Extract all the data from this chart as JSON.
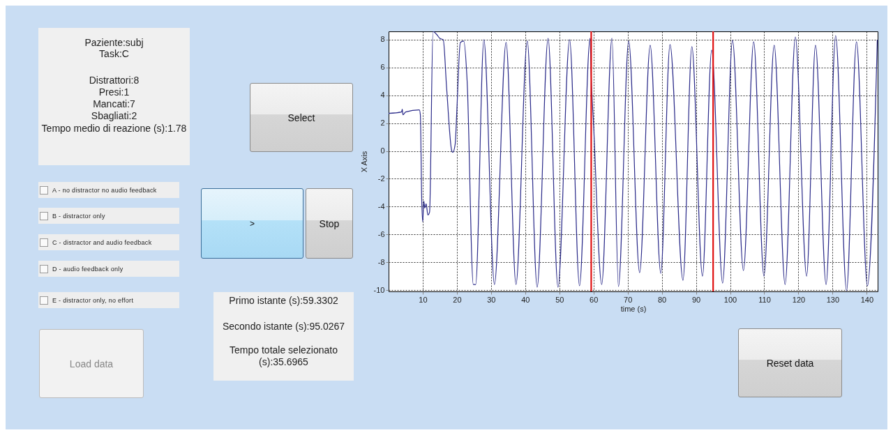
{
  "chart_data": [
    {
      "type": "line",
      "xlabel": "time (s)",
      "ylabel": "X Axis",
      "xlim": [
        0,
        143.2
      ],
      "ylim": [
        -10.1,
        8.6
      ],
      "xticks": [
        10,
        20,
        30,
        40,
        50,
        60,
        70,
        80,
        90,
        100,
        110,
        120,
        130,
        140
      ],
      "yticks": [
        -10,
        -8,
        -6,
        -4,
        -2,
        0,
        2,
        4,
        6,
        8
      ],
      "grid": true,
      "line_style": "solid",
      "marker": "none",
      "ref_lines": [
        {
          "axis": "x",
          "value": 59.3302,
          "color": "#e01010"
        },
        {
          "axis": "x",
          "value": 95.0267,
          "color": "#e01010"
        }
      ],
      "series": [
        {
          "color": "#2b2b8a",
          "x": [
            0,
            3.8,
            4,
            4.2,
            5,
            9,
            9.3,
            9.7,
            10,
            10.3,
            10.6,
            11,
            11.5,
            12,
            13,
            14,
            15,
            16,
            17,
            18.5,
            18.8,
            19.5,
            20,
            21,
            22,
            23,
            24.8,
            25.5,
            27.9,
            31,
            34.4,
            37.3,
            40.6,
            43.5,
            46.7,
            49.6,
            53,
            55.9,
            59,
            59.3,
            60,
            62.4,
            65.4,
            67.3,
            70.3,
            73.5,
            76.6,
            79.7,
            82.4,
            86.2,
            88.8,
            91.9,
            94.6,
            97.8,
            100.7,
            103.9,
            106.9,
            109.9,
            112.9,
            116.1,
            119.1,
            122.4,
            125,
            128.1,
            130.9,
            134.1,
            137,
            140.2,
            143.1
          ],
          "values": [
            2.7,
            2.8,
            3.0,
            2.6,
            2.8,
            2.95,
            2.6,
            -3.5,
            -5.1,
            -3.6,
            -4.1,
            -3.8,
            -4.6,
            -4.4,
            8.6,
            8.4,
            8.1,
            8.0,
            4.5,
            0,
            -0.1,
            0.5,
            3,
            7.8,
            7.9,
            5,
            -9.6,
            -9.6,
            8.0,
            -9.6,
            7.8,
            -9.6,
            7.9,
            -9.8,
            8.1,
            -9.8,
            8.0,
            -9.7,
            8.1,
            5.5,
            2,
            -9.6,
            8.1,
            -9.75,
            7.9,
            -8.75,
            7.6,
            -8.8,
            7.65,
            -9.3,
            7.5,
            -9.0,
            7.25,
            -9.5,
            7.95,
            -8.6,
            7.85,
            -9.0,
            7.6,
            -9.6,
            8.2,
            -9.0,
            7.6,
            -9.6,
            8.3,
            -10.05,
            7.85,
            -9.7,
            8.0
          ]
        }
      ]
    },
    {
      "type": "other",
      "annotations": [
        "Paziente:subj",
        "Task:C",
        "Distrattori:8",
        "Presi:1",
        "Mancati:7",
        "Sbagliati:2",
        "Tempo medio di reazione (s):1.78",
        "Select",
        "A - no distractor no audio feedback",
        "B - distractor only",
        "C - distractor and audio feedback",
        "D - audio feedback only",
        "E - distractor only, no effort",
        ">",
        "Stop",
        "Primo istante (s):59.3302",
        "Secondo istante (s):95.0267",
        "Tempo totale selezionato (s):35.6965",
        "Load data",
        "Reset data"
      ]
    }
  ]
}
